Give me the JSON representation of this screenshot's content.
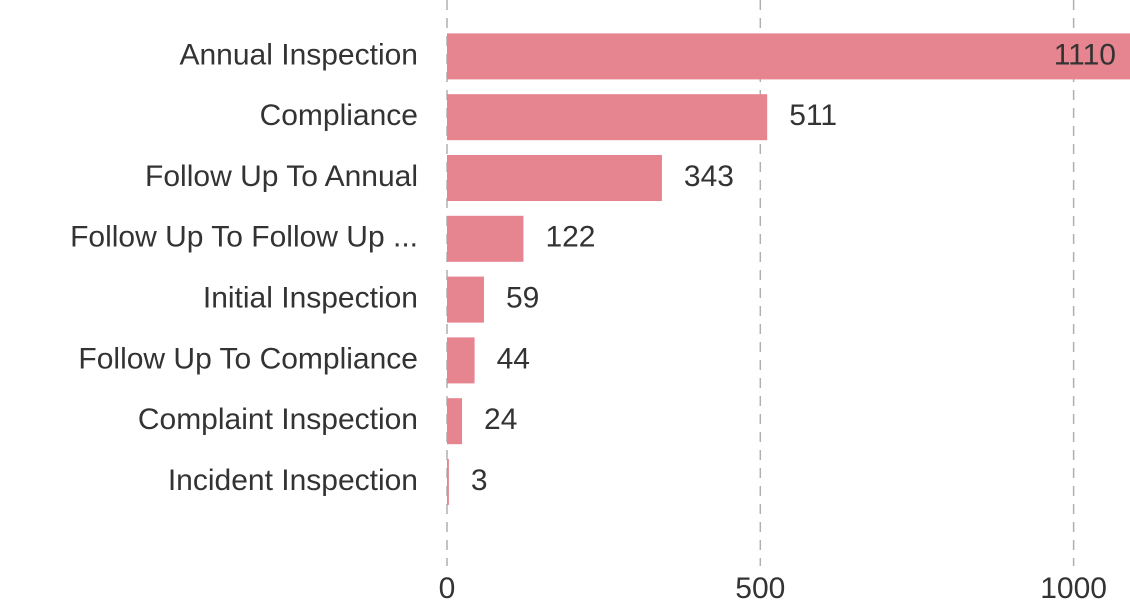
{
  "chart_data": {
    "type": "bar",
    "orientation": "horizontal",
    "categories": [
      "Annual Inspection",
      "Compliance",
      "Follow Up To Annual",
      "Follow Up To Follow Up ...",
      "Initial Inspection",
      "Follow Up To Compliance",
      "Complaint Inspection",
      "Incident Inspection"
    ],
    "values": [
      1110,
      511,
      343,
      122,
      59,
      44,
      24,
      3
    ],
    "color": "#e6848f",
    "xlim": [
      0,
      1090
    ],
    "xticks": [
      0,
      500,
      1000
    ],
    "grid": true
  }
}
